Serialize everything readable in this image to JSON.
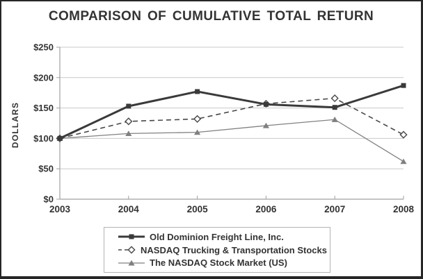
{
  "title": "COMPARISON OF CUMULATIVE TOTAL RETURN",
  "colors": {
    "text": "#333333",
    "grid": "#c8c8c8",
    "axis": "#a0a0a0",
    "legend_border": "#b3b3b3",
    "frame": "#262626",
    "background": "#ffffff"
  },
  "chart_data": {
    "type": "line",
    "title": "COMPARISON OF CUMULATIVE TOTAL RETURN",
    "xlabel": "",
    "ylabel": "DOLLARS",
    "x": [
      2003,
      2004,
      2005,
      2006,
      2007,
      2008
    ],
    "x_tick_labels": [
      "2003",
      "2004",
      "2005",
      "2006",
      "2007",
      "2008"
    ],
    "y_ticks": [
      0,
      50,
      100,
      150,
      200,
      250
    ],
    "y_tick_labels": [
      "$0",
      "$50",
      "$100",
      "$150",
      "$200",
      "$250"
    ],
    "ylim": [
      0,
      250
    ],
    "grid": "horizontal",
    "legend_position": "bottom-center",
    "series": [
      {
        "name": "Old Dominion Freight Line, Inc.",
        "values": [
          100,
          153,
          177,
          156,
          151,
          187
        ],
        "marker": "filled-square",
        "line": "solid-thick",
        "color": "#3a3a3a"
      },
      {
        "name": "NASDAQ Trucking & Transportation Stocks",
        "values": [
          100,
          128,
          132,
          157,
          166,
          106
        ],
        "marker": "open-diamond",
        "line": "dashed",
        "color": "#474747"
      },
      {
        "name": "The NASDAQ Stock Market (US)",
        "values": [
          100,
          108,
          110,
          121,
          131,
          62
        ],
        "marker": "filled-triangle",
        "line": "solid-thin",
        "color": "#808080"
      }
    ]
  }
}
